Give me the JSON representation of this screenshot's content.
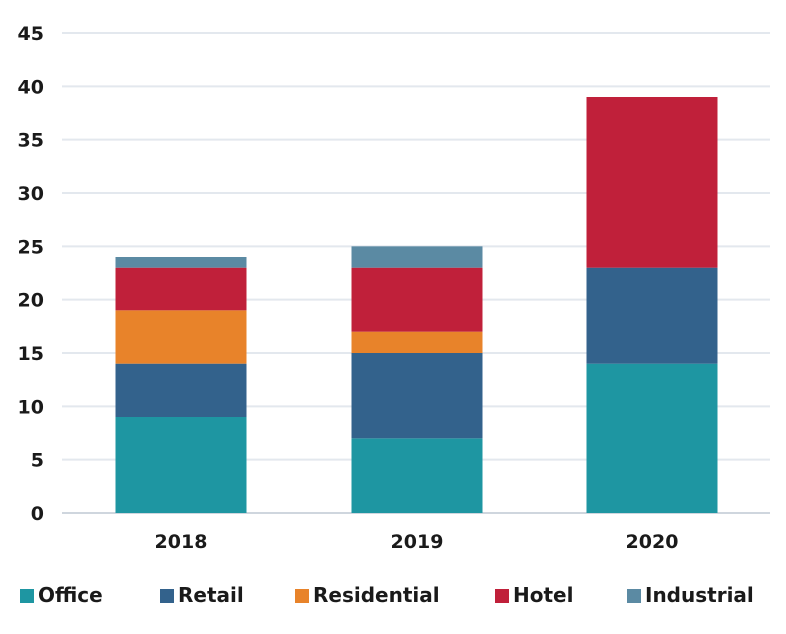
{
  "chart_data": {
    "type": "bar",
    "stacked": true,
    "categories": [
      "2018",
      "2019",
      "2020"
    ],
    "series": [
      {
        "name": "Office",
        "color": "#1e96a2",
        "values": [
          9,
          7,
          14
        ]
      },
      {
        "name": "Retail",
        "color": "#33628c",
        "values": [
          5,
          8,
          9
        ]
      },
      {
        "name": "Residential",
        "color": "#e8832a",
        "values": [
          5,
          2,
          0
        ]
      },
      {
        "name": "Hotel",
        "color": "#c0203a",
        "values": [
          4,
          6,
          16
        ]
      },
      {
        "name": "Industrial",
        "color": "#5b8aa3",
        "values": [
          1,
          2,
          0
        ]
      }
    ],
    "ylim": [
      0,
      45
    ],
    "yticks": [
      0,
      5,
      10,
      15,
      20,
      25,
      30,
      35,
      40,
      45
    ],
    "grid": true,
    "legend_position": "bottom",
    "title": "",
    "xlabel": "",
    "ylabel": ""
  }
}
